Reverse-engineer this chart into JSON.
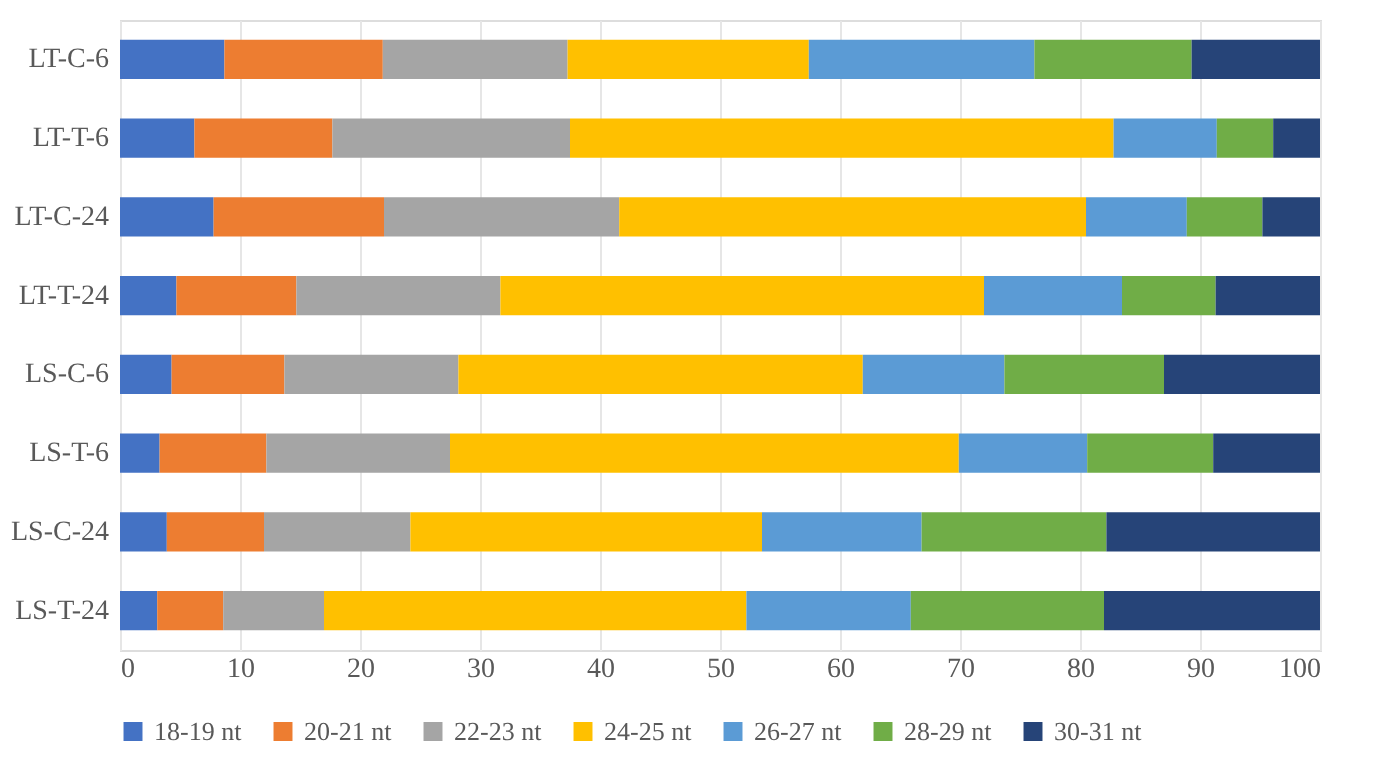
{
  "chart_data": {
    "type": "bar",
    "orientation": "horizontal",
    "stacked": true,
    "categories": [
      "LT-C-6",
      "LT-T-6",
      "LT-C-24",
      "LT-T-24",
      "LS-C-6",
      "LS-T-6",
      "LS-C-24",
      "LS-T-24"
    ],
    "series": [
      {
        "name": "18-19 nt",
        "color": "#4472c4",
        "values": [
          8.7,
          6.2,
          7.8,
          4.7,
          4.3,
          3.3,
          3.9,
          3.1
        ]
      },
      {
        "name": "20-21 nt",
        "color": "#ed7d31",
        "values": [
          13.2,
          11.5,
          14.2,
          10.0,
          9.4,
          8.9,
          8.1,
          5.5
        ]
      },
      {
        "name": "22-23 nt",
        "color": "#a5a5a5",
        "values": [
          15.4,
          19.8,
          19.6,
          17.0,
          14.5,
          15.3,
          12.2,
          8.4
        ]
      },
      {
        "name": "24-25 nt",
        "color": "#ffc000",
        "values": [
          20.1,
          45.3,
          38.9,
          40.3,
          33.7,
          42.4,
          29.3,
          35.2
        ]
      },
      {
        "name": "26-27 nt",
        "color": "#5b9bd5",
        "values": [
          18.8,
          8.6,
          8.4,
          11.5,
          11.8,
          10.7,
          13.3,
          13.7
        ]
      },
      {
        "name": "28-29 nt",
        "color": "#70ad47",
        "values": [
          13.1,
          4.7,
          6.3,
          7.8,
          13.3,
          10.5,
          15.4,
          16.1
        ]
      },
      {
        "name": "30-31 nt",
        "color": "#264478",
        "values": [
          10.7,
          3.9,
          4.8,
          8.7,
          13.0,
          8.9,
          17.8,
          18.0
        ]
      }
    ],
    "xlim": [
      0,
      100
    ],
    "xticks": [
      0,
      10,
      20,
      30,
      40,
      50,
      60,
      70,
      80,
      90,
      100
    ],
    "grid": "x",
    "legend": "bottom"
  }
}
